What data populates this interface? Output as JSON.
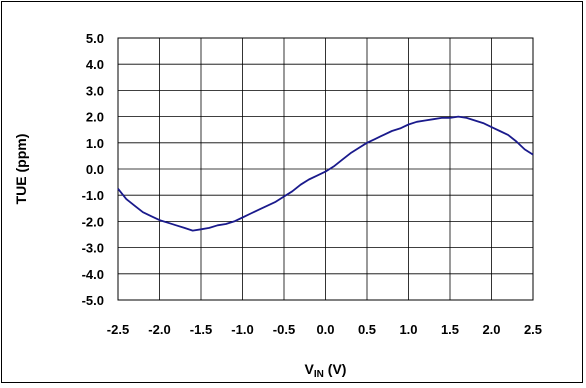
{
  "chart_data": {
    "type": "line",
    "title": "",
    "xlabel": "V",
    "xlabel_sub": "IN",
    "xlabel_unit": " (V)",
    "ylabel": "TUE (ppm)",
    "xlim": [
      -2.5,
      2.5
    ],
    "ylim": [
      -5.0,
      5.0
    ],
    "x_ticks": [
      "-2.5",
      "-2.0",
      "-1.5",
      "-1.0",
      "-0.5",
      "0.0",
      "0.5",
      "1.0",
      "1.5",
      "2.0",
      "2.5"
    ],
    "y_ticks": [
      "5.0",
      "4.0",
      "3.0",
      "2.0",
      "1.0",
      "0.0",
      "-1.0",
      "-2.0",
      "-3.0",
      "-4.0",
      "-5.0"
    ],
    "grid": true,
    "line_color": "#1a1a8c",
    "series": [
      {
        "x": [
          -2.5,
          -2.4,
          -2.3,
          -2.2,
          -2.1,
          -2.0,
          -1.9,
          -1.8,
          -1.7,
          -1.6,
          -1.5,
          -1.4,
          -1.3,
          -1.2,
          -1.1,
          -1.0,
          -0.9,
          -0.8,
          -0.7,
          -0.6,
          -0.5,
          -0.4,
          -0.3,
          -0.2,
          -0.1,
          0.0,
          0.1,
          0.2,
          0.3,
          0.4,
          0.5,
          0.6,
          0.7,
          0.8,
          0.9,
          1.0,
          1.1,
          1.2,
          1.3,
          1.4,
          1.5,
          1.6,
          1.7,
          1.8,
          1.9,
          2.0,
          2.1,
          2.2,
          2.3,
          2.4,
          2.5
        ],
        "y": [
          -0.75,
          -1.15,
          -1.4,
          -1.65,
          -1.8,
          -1.95,
          -2.05,
          -2.15,
          -2.25,
          -2.35,
          -2.3,
          -2.25,
          -2.15,
          -2.1,
          -2.0,
          -1.85,
          -1.7,
          -1.55,
          -1.4,
          -1.25,
          -1.05,
          -0.85,
          -0.6,
          -0.4,
          -0.25,
          -0.1,
          0.1,
          0.35,
          0.6,
          0.8,
          1.0,
          1.15,
          1.3,
          1.45,
          1.55,
          1.7,
          1.8,
          1.85,
          1.9,
          1.95,
          1.95,
          2.0,
          1.95,
          1.85,
          1.75,
          1.6,
          1.45,
          1.3,
          1.05,
          0.75,
          0.55
        ]
      }
    ]
  }
}
